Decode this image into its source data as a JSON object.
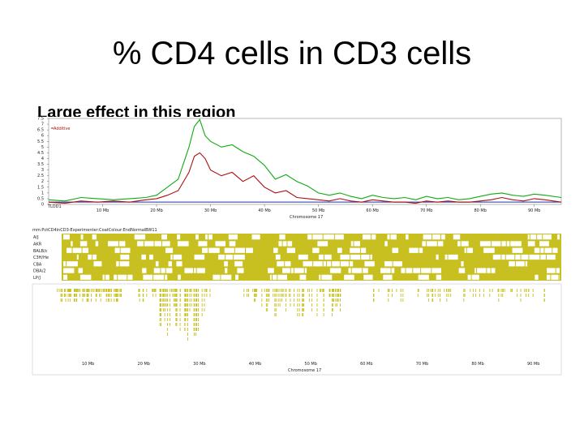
{
  "slide": {
    "title": "% CD4 cells in CD3 cells",
    "subtitle": "Large effect in this region"
  },
  "colors": {
    "series_red": "#aa1111",
    "series_green": "#11aa11",
    "threshold_blue": "#2233aa",
    "track_gold": "#c8c020",
    "track_bg": "#ffffff"
  },
  "chart_data": [
    {
      "type": "line",
      "xlabel": "Chromosome 17",
      "x_ticks": [
        "10 Mb",
        "20 Mb",
        "30 Mb",
        "40 Mb",
        "50 Mb",
        "60 Mb",
        "70 Mb",
        "80 Mb",
        "90 Mb"
      ],
      "y_ticks": [
        "0",
        "0.5",
        "1",
        "1.5",
        "2",
        "2.5",
        "3",
        "3.5",
        "4",
        "4.5",
        "5",
        "5.5",
        "6",
        "6.5",
        "7",
        "7.5"
      ],
      "xlim": [
        0,
        95
      ],
      "ylim": [
        0,
        7.5
      ],
      "threshold_label": "TLOD1",
      "series": [
        {
          "name": "Additive",
          "x": [
            0,
            3,
            6,
            9,
            12,
            15,
            18,
            20,
            22,
            24,
            26,
            27,
            28,
            29,
            30,
            32,
            34,
            36,
            38,
            40,
            42,
            44,
            46,
            48,
            50,
            52,
            54,
            56,
            58,
            60,
            62,
            64,
            66,
            68,
            70,
            72,
            74,
            76,
            78,
            80,
            82,
            84,
            86,
            88,
            90,
            92,
            95
          ],
          "y": [
            0.2,
            0.1,
            0.3,
            0.2,
            0.3,
            0.2,
            0.4,
            0.5,
            0.8,
            1.2,
            2.8,
            4.2,
            4.5,
            4.0,
            3.0,
            2.5,
            2.8,
            2.0,
            2.5,
            1.5,
            1.0,
            1.2,
            0.6,
            0.5,
            0.4,
            0.3,
            0.5,
            0.3,
            0.2,
            0.4,
            0.3,
            0.2,
            0.2,
            0.1,
            0.3,
            0.2,
            0.3,
            0.2,
            0.2,
            0.3,
            0.4,
            0.6,
            0.4,
            0.3,
            0.5,
            0.4,
            0.2
          ]
        },
        {
          "name": "",
          "x": [
            0,
            3,
            6,
            9,
            12,
            15,
            18,
            20,
            22,
            24,
            26,
            27,
            28,
            29,
            30,
            32,
            34,
            36,
            38,
            40,
            42,
            44,
            46,
            48,
            50,
            52,
            54,
            56,
            58,
            60,
            62,
            64,
            66,
            68,
            70,
            72,
            74,
            76,
            78,
            80,
            82,
            84,
            86,
            88,
            90,
            92,
            95
          ],
          "y": [
            0.4,
            0.3,
            0.6,
            0.5,
            0.4,
            0.5,
            0.6,
            0.8,
            1.5,
            2.2,
            5.0,
            6.8,
            7.4,
            6.0,
            5.5,
            5.0,
            5.2,
            4.6,
            4.2,
            3.4,
            2.2,
            2.6,
            2.0,
            1.6,
            1.0,
            0.8,
            1.0,
            0.7,
            0.5,
            0.8,
            0.6,
            0.5,
            0.6,
            0.4,
            0.7,
            0.5,
            0.6,
            0.4,
            0.5,
            0.7,
            0.9,
            1.0,
            0.8,
            0.7,
            0.9,
            0.8,
            0.6
          ]
        }
      ],
      "threshold": 0.2
    },
    {
      "type": "heatmap",
      "label": "mm:PctCD4inCD3-Experimenter:CoatColour:EndNormalBW11",
      "row_labels": [
        "A/J",
        "AKR",
        "BALB/c",
        "C3H/He",
        "CBA",
        "DBA/2",
        "LP/J"
      ],
      "x_ticks": [
        "10 Mb",
        "20 Mb",
        "30 Mb",
        "40 Mb",
        "50 Mb",
        "60 Mb",
        "70 Mb",
        "80 Mb",
        "90 Mb"
      ]
    },
    {
      "type": "scatter",
      "xlabel": "Chromosome 17",
      "x_ticks": [
        "10 Mb",
        "20 Mb",
        "30 Mb",
        "40 Mb",
        "50 Mb",
        "60 Mb",
        "70 Mb",
        "80 Mb",
        "90 Mb"
      ]
    }
  ]
}
